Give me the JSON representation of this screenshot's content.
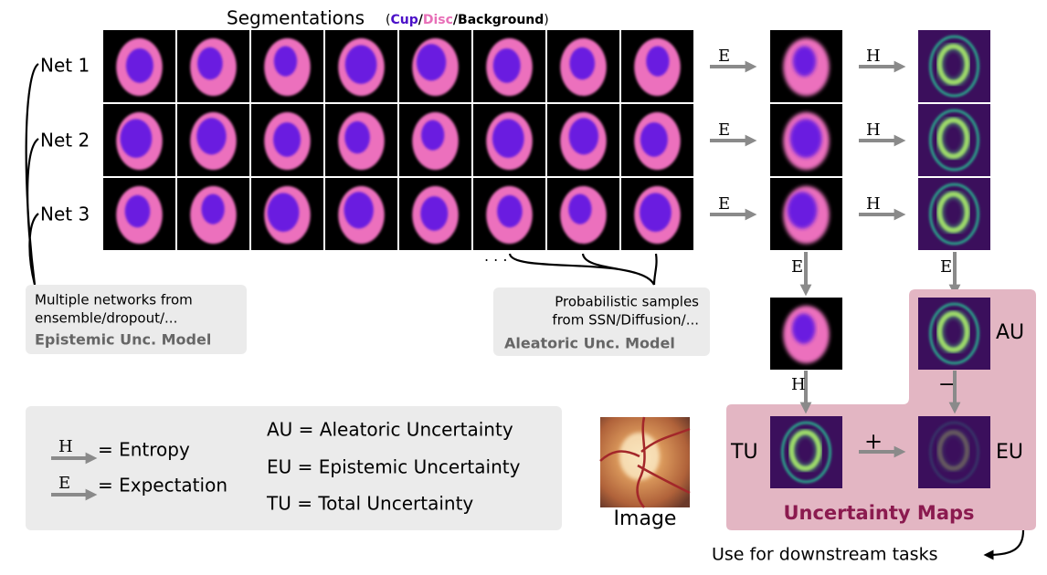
{
  "title": "Segmentations",
  "seg_legend": {
    "open": "(",
    "cup": "Cup",
    "sep": "/",
    "disc": "Disc",
    "background": "Background",
    "close": ")"
  },
  "nets": [
    "Net 1",
    "Net 2",
    "Net 3"
  ],
  "operators": {
    "expectation": "E",
    "entropy": "H",
    "minus": "−",
    "plus": "+"
  },
  "ellipsis": "· · ·",
  "epistemic_box": {
    "lines": [
      "Multiple networks from",
      "ensemble/dropout/..."
    ],
    "title": "Epistemic Unc. Model"
  },
  "aleatoric_box": {
    "lines": [
      "Probabilistic samples",
      "from SSN/Diffusion/..."
    ],
    "title": "Aleatoric Unc. Model"
  },
  "maps": {
    "au": "AU",
    "tu": "TU",
    "eu": "EU",
    "title": "Uncertainty Maps"
  },
  "legend": {
    "entropy": "= Entropy",
    "expectation": "= Expectation",
    "au": "AU = Aleatoric Uncertainty",
    "eu": "EU = Epistemic Uncertainty",
    "tu": "TU = Total Uncertainty"
  },
  "image_label": "Image",
  "downstream": "Use for downstream tasks"
}
